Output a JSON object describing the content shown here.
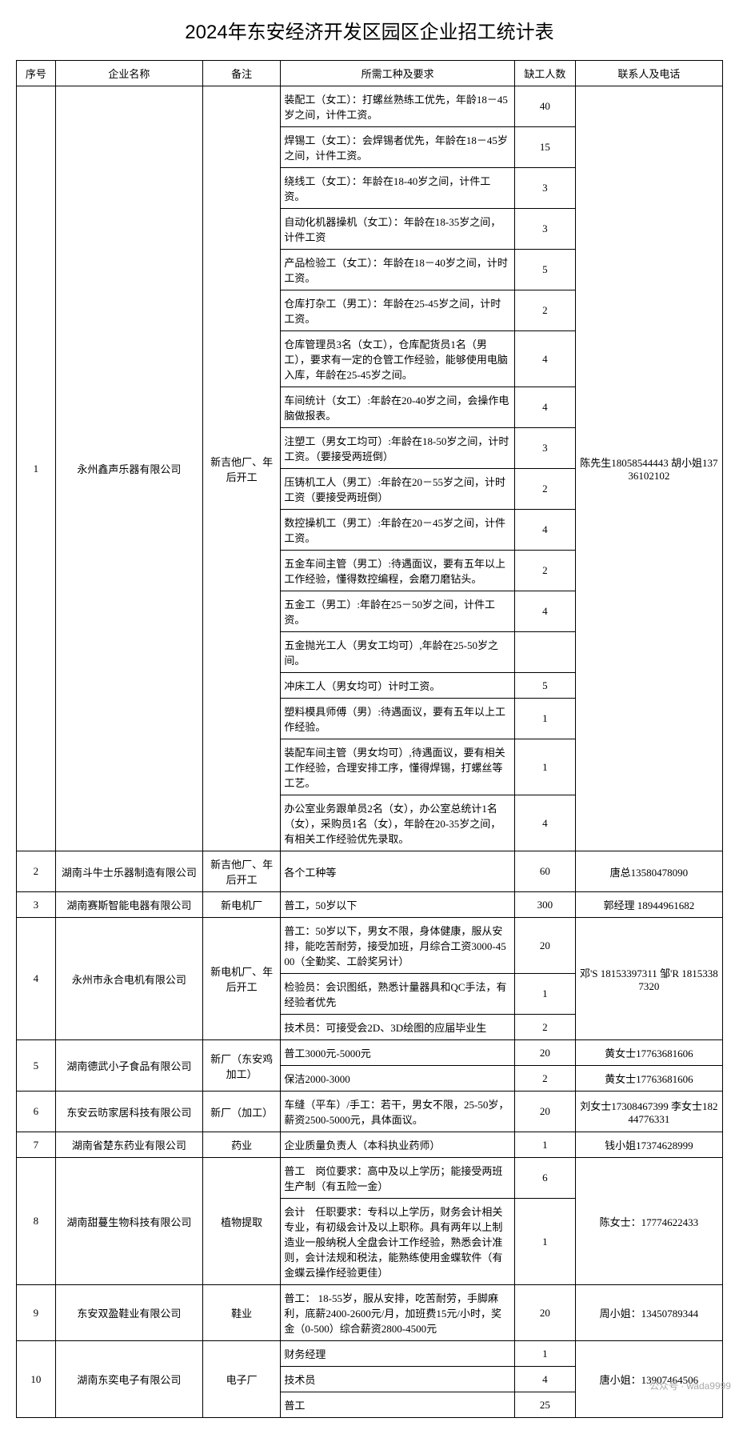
{
  "title": "2024年东安经济开发区园区企业招工统计表",
  "headers": {
    "seq": "序号",
    "company": "企业名称",
    "remark": "备注",
    "job": "所需工种及要求",
    "count": "缺工人数",
    "contact": "联系人及电话"
  },
  "rows": [
    {
      "seq": "1",
      "company": "永州鑫声乐器有限公司",
      "remark": "新吉他厂、年后开工",
      "contact": "陈先生18058544443 胡小姐13736102102",
      "jobs": [
        {
          "desc": "装配工（女工）：打螺丝熟练工优先，年龄18－45岁之间，计件工资。",
          "count": "40"
        },
        {
          "desc": "焊锡工（女工）：会焊锡者优先，年龄在18－45岁之间，计件工资。",
          "count": "15"
        },
        {
          "desc": "绕线工（女工）：年龄在18-40岁之间，计件工资。",
          "count": "3"
        },
        {
          "desc": "自动化机器操机（女工）：年龄在18-35岁之间，计件工资",
          "count": "3"
        },
        {
          "desc": "产品检验工（女工）：年龄在18－40岁之间，计时工资。",
          "count": "5"
        },
        {
          "desc": "仓库打杂工（男工）：年龄在25-45岁之间，计时工资。",
          "count": "2"
        },
        {
          "desc": "仓库管理员3名（女工），仓库配货员1名（男工），要求有一定的仓管工作经验，能够使用电脑入库，年龄在25-45岁之间。",
          "count": "4"
        },
        {
          "desc": "车间统计（女工）:年龄在20-40岁之间，会操作电脑做报表。",
          "count": "4"
        },
        {
          "desc": "注塑工（男女工均可）:年龄在18-50岁之间，计时工资。（要接受两班倒）",
          "count": "3"
        },
        {
          "desc": "压铸机工人（男工）:年龄在20－55岁之间，计时工资（要接受两班倒）",
          "count": "2"
        },
        {
          "desc": "数控操机工（男工）:年龄在20－45岁之间，计件工资。",
          "count": "4"
        },
        {
          "desc": "五金车间主管（男工）:待遇面议，要有五年以上工作经验，懂得数控编程，会磨刀磨钻头。",
          "count": "2"
        },
        {
          "desc": "五金工（男工）:年龄在25－50岁之间，计件工资。",
          "count": "4"
        },
        {
          "desc": "五金抛光工人（男女工均可）,年龄在25-50岁之间。",
          "count": ""
        },
        {
          "desc": "冲床工人（男女均可）计时工资。",
          "count": "5"
        },
        {
          "desc": "塑料模具师傅（男）:待遇面议，要有五年以上工作经验。",
          "count": "1"
        },
        {
          "desc": "装配车间主管（男女均可）,待遇面议，要有相关工作经验，合理安排工序，懂得焊锡，打螺丝等工艺。",
          "count": "1"
        },
        {
          "desc": "办公室业务跟单员2名（女），办公室总统计1名（女），采购员1名（女），年龄在20-35岁之间，有相关工作经验优先录取。",
          "count": "4"
        }
      ]
    },
    {
      "seq": "2",
      "company": "湖南斗牛士乐器制造有限公司",
      "remark": "新吉他厂、年后开工",
      "contact": "唐总13580478090",
      "jobs": [
        {
          "desc": "各个工种等",
          "count": "60"
        }
      ]
    },
    {
      "seq": "3",
      "company": "湖南赛斯智能电器有限公司",
      "remark": "新电机厂",
      "contact": "郭经理 18944961682",
      "jobs": [
        {
          "desc": "普工，50岁以下",
          "count": "300"
        }
      ]
    },
    {
      "seq": "4",
      "company": "永州市永合电机有限公司",
      "remark": "新电机厂、年后开工",
      "contact": "邓'S 18153397311 邹'R 18153387320",
      "jobs": [
        {
          "desc": "普工：50岁以下，男女不限，身体健康，服从安排，能吃苦耐劳，接受加班，月综合工资3000-4500（全勤奖、工龄奖另计）",
          "count": "20"
        },
        {
          "desc": "检验员：会识图纸，熟悉计量器具和QC手法，有经验者优先",
          "count": "1"
        },
        {
          "desc": "技术员：可接受会2D、3D绘图的应届毕业生",
          "count": "2"
        }
      ]
    },
    {
      "seq": "5",
      "company": "湖南德武小子食品有限公司",
      "remark": "新厂（东安鸡加工）",
      "contact_per_job": true,
      "jobs": [
        {
          "desc": "普工3000元-5000元",
          "count": "20",
          "contact": "黄女士17763681606"
        },
        {
          "desc": "保洁2000-3000",
          "count": "2",
          "contact": "黄女士17763681606"
        }
      ]
    },
    {
      "seq": "6",
      "company": "东安云昉家居科技有限公司",
      "remark": "新厂（加工）",
      "contact": "刘女士17308467399 李女士18244776331",
      "jobs": [
        {
          "desc": "车缝（平车）/手工：若干，男女不限，25-50岁，薪资2500-5000元，具体面议。",
          "count": "20"
        }
      ]
    },
    {
      "seq": "7",
      "company": "湖南省楚东药业有限公司",
      "remark": "药业",
      "contact": "钱小姐17374628999",
      "jobs": [
        {
          "desc": "企业质量负责人（本科执业药师）",
          "count": "1"
        }
      ]
    },
    {
      "seq": "8",
      "company": "湖南甜蔓生物科技有限公司",
      "remark": "植物提取",
      "contact": "陈女士：17774622433",
      "jobs": [
        {
          "desc": "普工　岗位要求：高中及以上学历；能接受两班生产制（有五险一金）",
          "count": "6"
        },
        {
          "desc": "会计　任职要求：专科以上学历，财务会计相关专业，有初级会计及以上职称。具有两年以上制造业一般纳税人全盘会计工作经验，熟悉会计准则，会计法规和税法，能熟练使用金蝶软件（有金蝶云操作经验更佳）",
          "count": "1"
        }
      ]
    },
    {
      "seq": "9",
      "company": "东安双盈鞋业有限公司",
      "remark": "鞋业",
      "contact": "周小姐：13450789344",
      "jobs": [
        {
          "desc": "普工： 18-55岁，服从安排，吃苦耐劳，手脚麻利，底薪2400-2600元/月，加班费15元/小时，奖金（0-500）综合薪资2800-4500元",
          "count": "20"
        }
      ]
    },
    {
      "seq": "10",
      "company": "湖南东奕电子有限公司",
      "remark": "电子厂",
      "contact": "唐小姐：13907464506",
      "jobs": [
        {
          "desc": "财务经理",
          "count": "1"
        },
        {
          "desc": "技术员",
          "count": "4"
        },
        {
          "desc": "普工",
          "count": "25"
        }
      ]
    }
  ],
  "watermark": "公众号 · wada9999"
}
